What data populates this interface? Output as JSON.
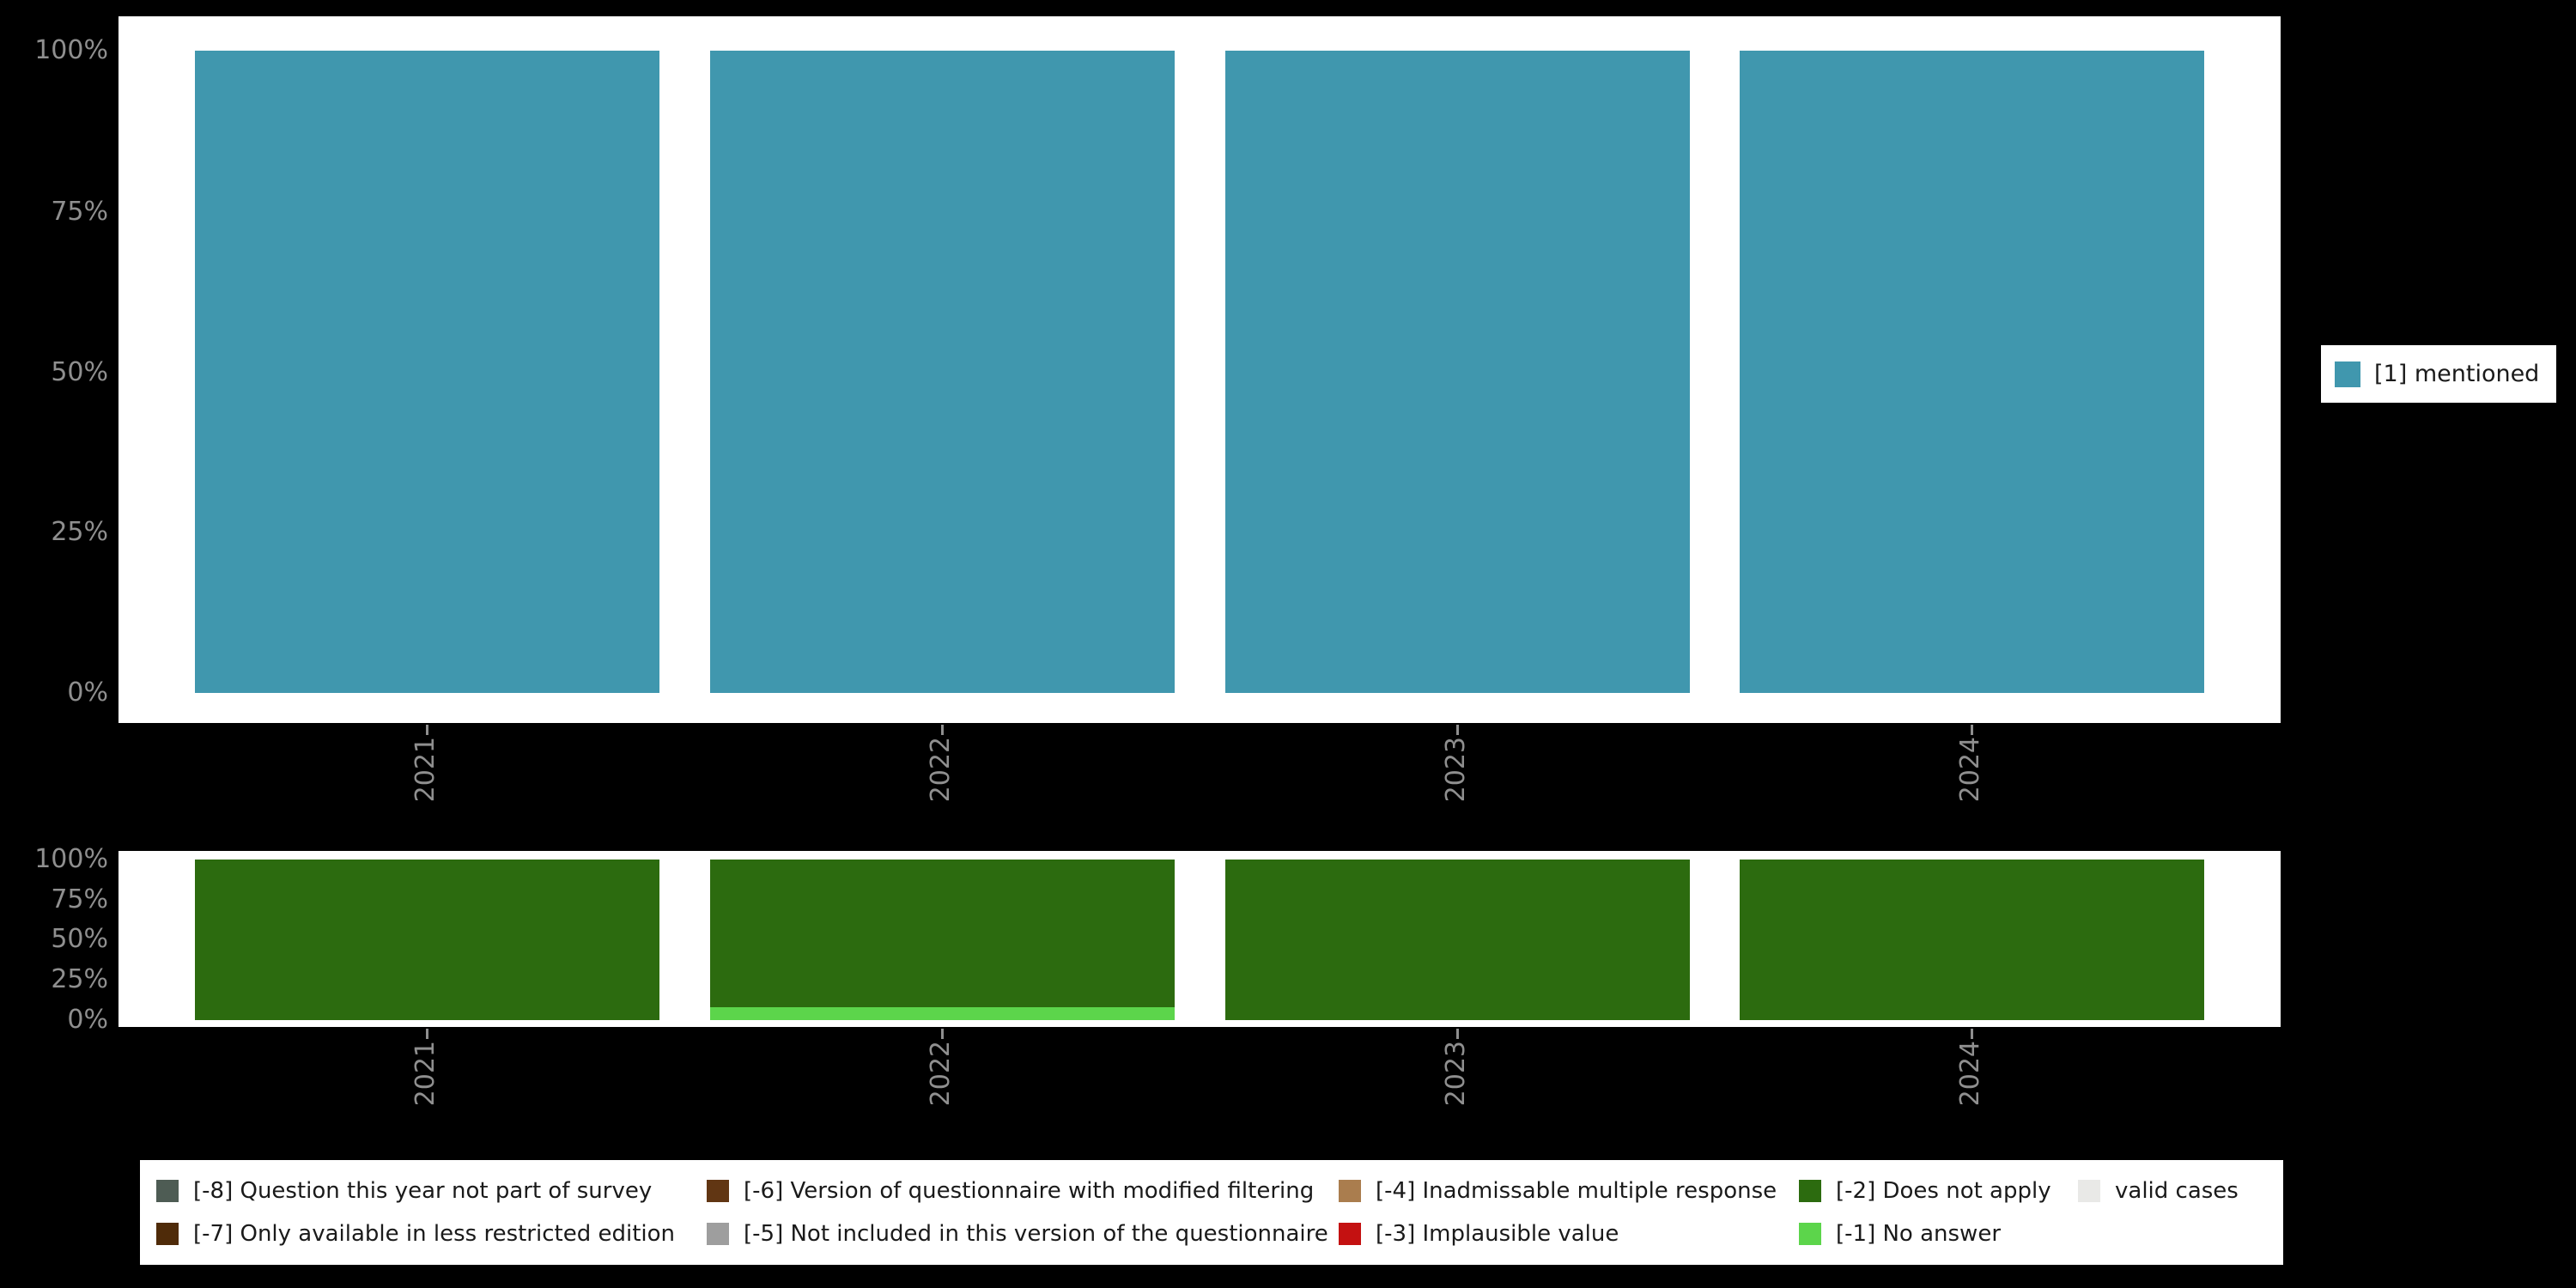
{
  "background_color": "#000000",
  "panel_color": "#ffffff",
  "axis": {
    "y_ticks": [
      "100%",
      "75%",
      "50%",
      "25%",
      "0%"
    ],
    "x_ticks": [
      "2021",
      "2022",
      "2023",
      "2024"
    ],
    "tick_color": "#8f8f8f"
  },
  "top_legend": {
    "items": [
      {
        "label": "[1] mentioned",
        "color": "#4097ae"
      }
    ]
  },
  "bottom_legend": {
    "rows": [
      [
        {
          "label": "[-8] Question this year not part of survey",
          "color": "#4e5c54"
        },
        {
          "label": "[-6] Version of questionnaire with modified filtering",
          "color": "#613613"
        },
        {
          "label": "[-4] Inadmissable multiple response",
          "color": "#aa7d4e"
        },
        {
          "label": "[-2] Does not apply",
          "color": "#2c6b0f"
        },
        {
          "label": "valid cases",
          "color": "#e9e9e7"
        }
      ],
      [
        {
          "label": "[-7] Only available in less restricted edition",
          "color": "#4f2b09"
        },
        {
          "label": "[-5] Not included in this version of the questionnaire",
          "color": "#9e9e9e"
        },
        {
          "label": "[-3] Implausible value",
          "color": "#c41111"
        },
        {
          "label": "[-1] No answer",
          "color": "#5cd54b"
        }
      ]
    ]
  },
  "chart_data": [
    {
      "type": "bar",
      "stacked": true,
      "title": "",
      "categories": [
        "2021",
        "2022",
        "2023",
        "2024"
      ],
      "series": [
        {
          "name": "[1] mentioned",
          "color": "#4097ae",
          "values": [
            100,
            100,
            100,
            100
          ]
        }
      ],
      "ylim": [
        0,
        100
      ],
      "y_tick_labels": [
        "0%",
        "25%",
        "50%",
        "75%",
        "100%"
      ],
      "grid": false,
      "legend_position": "right",
      "x_label_rotation": 90
    },
    {
      "type": "bar",
      "stacked": true,
      "title": "",
      "categories": [
        "2021",
        "2022",
        "2023",
        "2024"
      ],
      "series": [
        {
          "name": "[-1] No answer",
          "color": "#5cd54b",
          "values": [
            0,
            8,
            0,
            0
          ]
        },
        {
          "name": "[-2] Does not apply",
          "color": "#2c6b0f",
          "values": [
            100,
            92,
            100,
            100
          ]
        }
      ],
      "ylim": [
        0,
        100
      ],
      "y_tick_labels": [
        "0%",
        "25%",
        "50%",
        "75%",
        "100%"
      ],
      "grid": false,
      "legend_position": "bottom",
      "x_label_rotation": 90
    }
  ]
}
